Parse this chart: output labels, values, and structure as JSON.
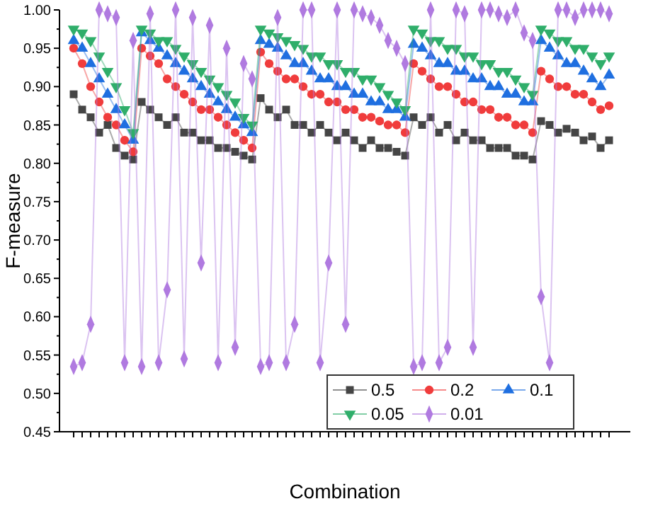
{
  "chart_data": {
    "type": "line",
    "xlabel": "Combination",
    "ylabel": "F-measure",
    "ylim": [
      0.45,
      1.0
    ],
    "yticks": [
      0.45,
      {
        "value": 0.5,
        "label": "0.50"
      },
      0.55,
      {
        "value": 0.6,
        "label": "0.60"
      },
      0.65,
      {
        "value": 0.7,
        "label": "0.70"
      },
      0.75,
      {
        "value": 0.8,
        "label": "0.80"
      },
      0.85,
      {
        "value": 0.9,
        "label": "0.90"
      },
      0.95,
      {
        "value": 1.0,
        "label": "1.00"
      }
    ],
    "tick_labels": "y",
    "legend": "bottom right",
    "grid": false,
    "categories": [
      null,
      null,
      null,
      null,
      null,
      null,
      null,
      null,
      null,
      null,
      null,
      null,
      null,
      null,
      null,
      null,
      null,
      null,
      null,
      null,
      null,
      null,
      null,
      null,
      null,
      null,
      null,
      null,
      null,
      null,
      null,
      null,
      null,
      null,
      null,
      null,
      null,
      null,
      null,
      null,
      null,
      null,
      null,
      null,
      null,
      null,
      null,
      null,
      null,
      null,
      null,
      null,
      null,
      null,
      null,
      null,
      null,
      null,
      null,
      null,
      null,
      null,
      null,
      null
    ],
    "series": [
      {
        "name": "0.5",
        "color": "#454545",
        "marker": "square",
        "values": [
          0.89,
          0.87,
          0.86,
          0.84,
          0.85,
          0.82,
          0.81,
          0.805,
          0.88,
          0.87,
          0.86,
          0.85,
          0.86,
          0.84,
          0.84,
          0.83,
          0.83,
          0.82,
          0.82,
          0.815,
          0.81,
          0.805,
          0.885,
          0.87,
          0.86,
          0.87,
          0.85,
          0.85,
          0.84,
          0.85,
          0.84,
          0.83,
          0.84,
          0.83,
          0.82,
          0.83,
          0.82,
          0.82,
          0.815,
          0.81,
          0.86,
          0.85,
          0.86,
          0.84,
          0.85,
          0.83,
          0.84,
          0.83,
          0.83,
          0.82,
          0.82,
          0.82,
          0.81,
          0.81,
          0.805,
          0.855,
          0.85,
          0.84,
          0.845,
          0.84,
          0.83,
          0.835,
          0.82,
          0.83
        ]
      },
      {
        "name": "0.2",
        "color": "#f03c3c",
        "marker": "circle",
        "values": [
          0.95,
          0.93,
          0.9,
          0.88,
          0.86,
          0.85,
          0.83,
          0.815,
          0.95,
          0.94,
          0.93,
          0.91,
          0.9,
          0.89,
          0.88,
          0.87,
          0.87,
          0.86,
          0.85,
          0.84,
          0.83,
          0.82,
          0.945,
          0.93,
          0.92,
          0.91,
          0.91,
          0.9,
          0.89,
          0.89,
          0.88,
          0.88,
          0.87,
          0.87,
          0.86,
          0.86,
          0.855,
          0.85,
          0.85,
          0.84,
          0.93,
          0.92,
          0.91,
          0.9,
          0.9,
          0.89,
          0.88,
          0.88,
          0.87,
          0.87,
          0.86,
          0.86,
          0.85,
          0.85,
          0.84,
          0.92,
          0.91,
          0.9,
          0.9,
          0.89,
          0.89,
          0.88,
          0.87,
          0.875
        ]
      },
      {
        "name": "0.1",
        "color": "#1f6fe0",
        "marker": "triangle",
        "values": [
          0.96,
          0.95,
          0.93,
          0.91,
          0.89,
          0.87,
          0.85,
          0.83,
          0.97,
          0.96,
          0.95,
          0.94,
          0.93,
          0.92,
          0.91,
          0.9,
          0.89,
          0.88,
          0.87,
          0.86,
          0.85,
          0.84,
          0.96,
          0.955,
          0.95,
          0.94,
          0.93,
          0.93,
          0.92,
          0.91,
          0.91,
          0.9,
          0.9,
          0.89,
          0.89,
          0.88,
          0.88,
          0.87,
          0.87,
          0.86,
          0.955,
          0.95,
          0.94,
          0.93,
          0.93,
          0.92,
          0.92,
          0.91,
          0.91,
          0.9,
          0.9,
          0.89,
          0.89,
          0.88,
          0.88,
          0.96,
          0.95,
          0.94,
          0.93,
          0.93,
          0.92,
          0.91,
          0.9,
          0.915
        ]
      },
      {
        "name": "0.05",
        "color": "#2fae6a",
        "marker": "triangle-down",
        "values": [
          0.975,
          0.97,
          0.96,
          0.94,
          0.92,
          0.9,
          0.87,
          0.84,
          0.975,
          0.97,
          0.96,
          0.96,
          0.95,
          0.94,
          0.93,
          0.92,
          0.91,
          0.9,
          0.89,
          0.88,
          0.86,
          0.85,
          0.975,
          0.97,
          0.965,
          0.96,
          0.955,
          0.95,
          0.94,
          0.94,
          0.93,
          0.93,
          0.92,
          0.92,
          0.91,
          0.91,
          0.9,
          0.89,
          0.88,
          0.87,
          0.975,
          0.97,
          0.96,
          0.96,
          0.95,
          0.95,
          0.94,
          0.94,
          0.93,
          0.93,
          0.92,
          0.92,
          0.91,
          0.9,
          0.89,
          0.975,
          0.97,
          0.96,
          0.96,
          0.95,
          0.95,
          0.94,
          0.93,
          0.94
        ]
      },
      {
        "name": "0.01",
        "color": "#b07ae0",
        "marker": "diamond",
        "values": [
          0.535,
          0.54,
          0.59,
          1.0,
          0.995,
          0.99,
          0.54,
          0.96,
          0.535,
          0.995,
          0.54,
          0.635,
          1.0,
          0.545,
          0.99,
          0.67,
          0.98,
          0.54,
          0.95,
          0.56,
          0.93,
          0.91,
          0.535,
          0.54,
          0.99,
          0.54,
          0.59,
          1.0,
          1.0,
          0.54,
          0.67,
          1.0,
          0.59,
          1.0,
          0.995,
          0.99,
          0.98,
          0.96,
          0.95,
          0.93,
          0.535,
          0.54,
          1.0,
          0.54,
          0.56,
          1.0,
          0.995,
          0.56,
          1.0,
          1.0,
          0.995,
          0.99,
          1.0,
          0.97,
          0.96,
          0.626,
          0.54,
          1.0,
          1.0,
          0.99,
          1.0,
          1.0,
          1.0,
          0.995
        ]
      }
    ]
  }
}
